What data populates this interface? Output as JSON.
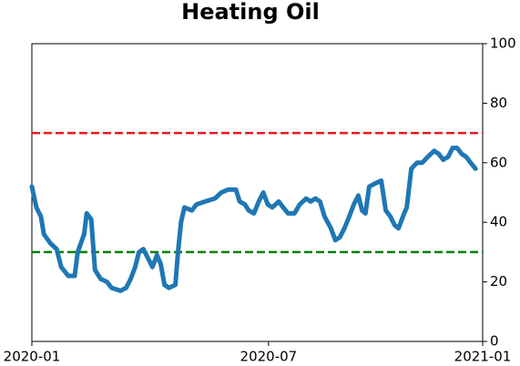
{
  "chart_data": {
    "type": "line",
    "title": "Heating Oil",
    "x": [
      0,
      0.12,
      0.24,
      0.32,
      0.49,
      0.66,
      0.78,
      0.97,
      1.14,
      1.22,
      1.39,
      1.46,
      1.58,
      1.68,
      1.83,
      2.0,
      2.12,
      2.36,
      2.51,
      2.63,
      2.75,
      2.85,
      2.97,
      3.09,
      3.21,
      3.33,
      3.43,
      3.53,
      3.65,
      3.82,
      3.89,
      3.97,
      4.06,
      4.26,
      4.38,
      4.62,
      4.87,
      5.04,
      5.23,
      5.43,
      5.53,
      5.67,
      5.77,
      5.91,
      6.04,
      6.16,
      6.28,
      6.4,
      6.57,
      6.69,
      6.82,
      6.99,
      7.13,
      7.3,
      7.42,
      7.55,
      7.67,
      7.79,
      7.96,
      8.08,
      8.2,
      8.32,
      8.45,
      8.57,
      8.69,
      8.79,
      8.88,
      8.98,
      9.13,
      9.3,
      9.42,
      9.54,
      9.66,
      9.76,
      9.91,
      9.98,
      10.1,
      10.25,
      10.39,
      10.54,
      10.71,
      10.83,
      10.95,
      11.08,
      11.2,
      11.32,
      11.44,
      11.56,
      11.68,
      11.81
    ],
    "series": [
      {
        "color": "#1f77b4",
        "values": [
          52,
          45,
          42,
          36,
          33,
          31,
          25,
          22,
          22,
          30,
          36,
          43,
          41,
          24,
          21,
          20,
          18,
          17,
          18,
          21,
          25,
          30,
          31,
          28,
          25,
          29,
          26,
          19,
          18,
          19,
          30,
          40,
          45,
          44,
          46,
          47,
          48,
          50,
          51,
          51,
          47,
          46,
          44,
          43,
          47,
          50,
          46,
          45,
          47,
          45,
          43,
          43,
          46,
          48,
          47,
          48,
          47,
          42,
          38,
          34,
          35,
          38,
          42,
          46,
          49,
          44,
          43,
          52,
          53,
          54,
          44,
          42,
          39,
          38,
          43,
          45,
          58,
          60,
          60,
          62,
          64,
          63,
          61,
          62,
          65,
          65,
          63,
          62,
          60,
          58
        ]
      }
    ],
    "xlim": [
      0,
      12
    ],
    "xticks": [
      {
        "value": 0,
        "label": "2020-01"
      },
      {
        "value": 6.3,
        "label": "2020-07"
      },
      {
        "value": 12,
        "label": "2021-01"
      }
    ],
    "ylim": [
      0,
      100
    ],
    "yticks": [
      0,
      20,
      40,
      60,
      80,
      100
    ],
    "yaxis_side": "right",
    "hlines": [
      {
        "value": 70,
        "color": "#e41a1c"
      },
      {
        "value": 30,
        "color": "#008000"
      }
    ]
  }
}
